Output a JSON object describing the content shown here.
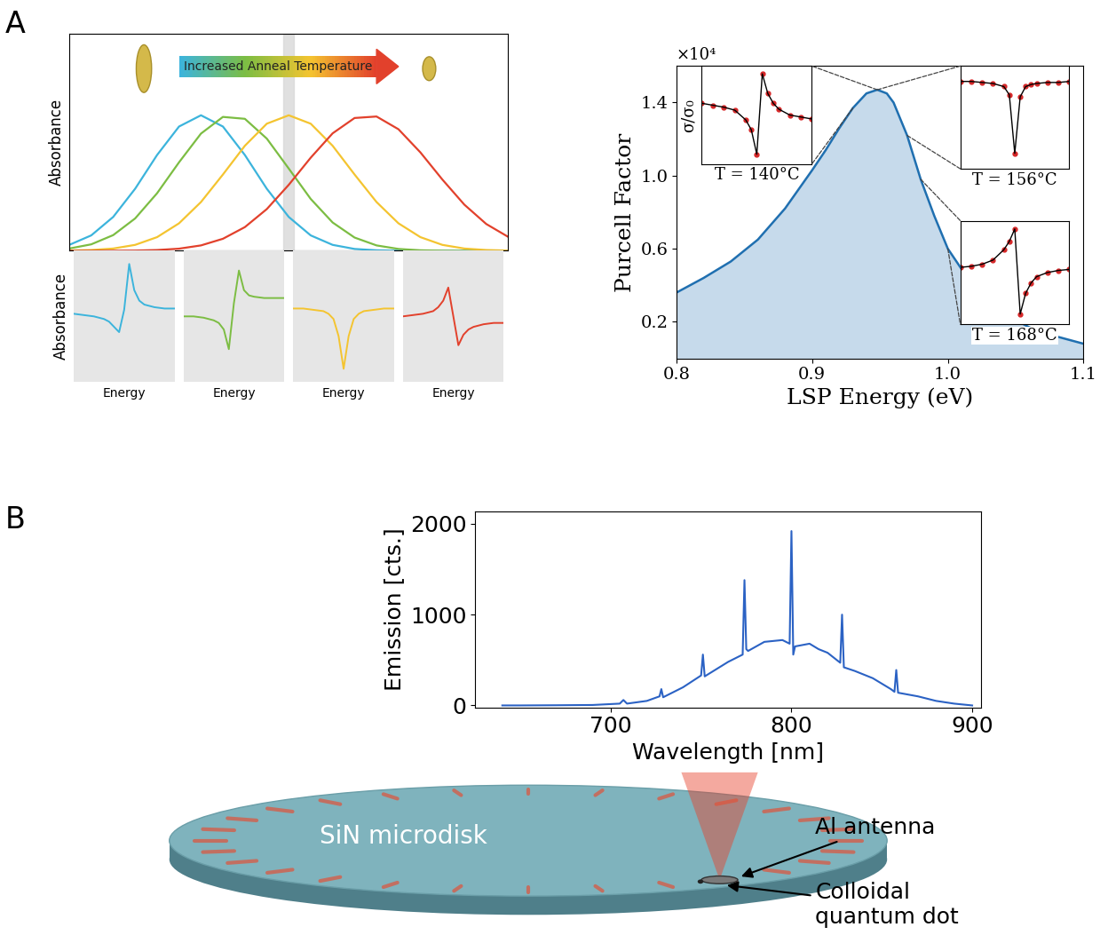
{
  "panel_labels": [
    "A",
    "B"
  ],
  "chart_data": [
    {
      "type": "line",
      "y_label": "Absorbance",
      "annotations": [
        "Increased Anneal Temperature"
      ],
      "tick_labels": false,
      "x": [
        0,
        0.05,
        0.1,
        0.15,
        0.2,
        0.25,
        0.3,
        0.35,
        0.4,
        0.45,
        0.5,
        0.55,
        0.6,
        0.65,
        0.7,
        0.75,
        0.8,
        0.85,
        0.9,
        0.95,
        1
      ],
      "xlim": [
        0,
        1
      ],
      "ylim": [
        0,
        1.6
      ],
      "series": [
        {
          "color": "#3cb4dc",
          "values": [
            0.044,
            0.114,
            0.25,
            0.458,
            0.707,
            0.917,
            1,
            0.917,
            0.707,
            0.458,
            0.25,
            0.114,
            0.044,
            0.014,
            0.004,
            0.001,
            0,
            0,
            0,
            0,
            0
          ]
        },
        {
          "color": "#7cbd43",
          "values": [
            0.017,
            0.048,
            0.116,
            0.239,
            0.425,
            0.653,
            0.865,
            0.988,
            0.974,
            0.828,
            0.607,
            0.383,
            0.209,
            0.098,
            0.04,
            0.014,
            0.004,
            0.001,
            0,
            0,
            0
          ]
        },
        {
          "color": "#f4c430",
          "values": [
            0.002,
            0.006,
            0.017,
            0.044,
            0.101,
            0.203,
            0.36,
            0.563,
            0.775,
            0.938,
            1,
            0.938,
            0.775,
            0.563,
            0.36,
            0.203,
            0.101,
            0.044,
            0.017,
            0.006,
            0.002
          ]
        },
        {
          "color": "#e2412c",
          "values": [
            0,
            0,
            0.001,
            0.002,
            0.006,
            0.016,
            0.04,
            0.089,
            0.175,
            0.308,
            0.487,
            0.687,
            0.867,
            0.98,
            0.991,
            0.897,
            0.726,
            0.526,
            0.341,
            0.198,
            0.103
          ]
        }
      ]
    },
    {
      "type": "line",
      "y_label": "Absorbance",
      "x_label": "Energy",
      "tick_labels": false,
      "x": [
        0,
        0.1,
        0.2,
        0.3,
        0.35,
        0.4,
        0.45,
        0.5,
        0.55,
        0.6,
        0.65,
        0.7,
        0.8,
        0.9,
        1
      ],
      "xlim": [
        0,
        1
      ],
      "ylim": [
        0,
        1
      ],
      "color": "#3cb4dc",
      "values": [
        0.52,
        0.51,
        0.5,
        0.48,
        0.46,
        0.42,
        0.38,
        0.55,
        0.9,
        0.7,
        0.62,
        0.59,
        0.57,
        0.56,
        0.56
      ]
    },
    {
      "type": "line",
      "x_label": "Energy",
      "tick_labels": false,
      "x": [
        0,
        0.1,
        0.2,
        0.3,
        0.35,
        0.4,
        0.45,
        0.5,
        0.55,
        0.6,
        0.65,
        0.7,
        0.8,
        0.9,
        1
      ],
      "xlim": [
        0,
        1
      ],
      "ylim": [
        0,
        1
      ],
      "color": "#7cbd43",
      "values": [
        0.5,
        0.5,
        0.49,
        0.47,
        0.45,
        0.4,
        0.25,
        0.6,
        0.85,
        0.7,
        0.66,
        0.65,
        0.64,
        0.64,
        0.64
      ]
    },
    {
      "type": "line",
      "x_label": "Energy",
      "tick_labels": false,
      "x": [
        0,
        0.1,
        0.2,
        0.3,
        0.35,
        0.4,
        0.45,
        0.5,
        0.55,
        0.6,
        0.65,
        0.7,
        0.8,
        0.9,
        1
      ],
      "xlim": [
        0,
        1
      ],
      "ylim": [
        0,
        1
      ],
      "color": "#f4c430",
      "values": [
        0.56,
        0.56,
        0.55,
        0.54,
        0.52,
        0.48,
        0.35,
        0.1,
        0.35,
        0.48,
        0.52,
        0.54,
        0.55,
        0.56,
        0.56
      ]
    },
    {
      "type": "line",
      "x_label": "Energy",
      "tick_labels": false,
      "x": [
        0,
        0.1,
        0.2,
        0.3,
        0.35,
        0.4,
        0.45,
        0.5,
        0.55,
        0.6,
        0.65,
        0.7,
        0.8,
        0.9,
        1
      ],
      "xlim": [
        0,
        1
      ],
      "ylim": [
        0,
        1
      ],
      "color": "#e2412c",
      "values": [
        0.5,
        0.51,
        0.52,
        0.54,
        0.57,
        0.62,
        0.72,
        0.5,
        0.28,
        0.36,
        0.4,
        0.42,
        0.44,
        0.45,
        0.45
      ]
    },
    {
      "type": "area",
      "x_label": "LSP Energy (eV)",
      "y_label": "Purcell Factor",
      "annotations": [
        "×10⁴"
      ],
      "x": [
        0.8,
        0.82,
        0.84,
        0.86,
        0.88,
        0.9,
        0.91,
        0.92,
        0.93,
        0.94,
        0.948,
        0.955,
        0.96,
        0.97,
        0.98,
        0.99,
        1.0,
        1.02,
        1.04,
        1.06,
        1.08,
        1.1
      ],
      "values": [
        0.36,
        0.44,
        0.53,
        0.65,
        0.82,
        1.03,
        1.14,
        1.26,
        1.37,
        1.45,
        1.47,
        1.45,
        1.4,
        1.22,
        0.98,
        0.78,
        0.6,
        0.38,
        0.25,
        0.17,
        0.12,
        0.08
      ],
      "color": "#1f6fb0",
      "xlim": [
        0.8,
        1.1
      ],
      "xticks": [
        0.8,
        0.9,
        1.0,
        1.1
      ],
      "ylim": [
        0,
        1.6
      ],
      "yticks": [
        0.2,
        0.6,
        1.0,
        1.4
      ]
    },
    {
      "type": "line",
      "y_label": "σ/σ₀",
      "annotations": [
        "T = 140°C"
      ],
      "tick_labels": false,
      "x": [
        0,
        0.1,
        0.2,
        0.3,
        0.4,
        0.45,
        0.5,
        0.55,
        0.6,
        0.65,
        0.7,
        0.8,
        0.9,
        1
      ],
      "xlim": [
        0,
        1
      ],
      "ylim": [
        0,
        1
      ],
      "series": [
        {
          "type": "scatter",
          "color": "#d62728",
          "marker": "o",
          "values": [
            0.62,
            0.6,
            0.58,
            0.55,
            0.45,
            0.35,
            0.1,
            0.92,
            0.72,
            0.62,
            0.56,
            0.5,
            0.48,
            0.46
          ]
        },
        {
          "type": "line",
          "color": "#000000",
          "values": [
            0.62,
            0.6,
            0.58,
            0.55,
            0.45,
            0.35,
            0.1,
            0.92,
            0.72,
            0.62,
            0.56,
            0.5,
            0.48,
            0.46
          ]
        }
      ]
    },
    {
      "type": "line",
      "annotations": [
        "T = 156°C"
      ],
      "tick_labels": false,
      "x": [
        0,
        0.1,
        0.2,
        0.3,
        0.4,
        0.45,
        0.5,
        0.55,
        0.6,
        0.65,
        0.7,
        0.8,
        0.9,
        1
      ],
      "xlim": [
        0,
        1
      ],
      "ylim": [
        0,
        1
      ],
      "series": [
        {
          "type": "scatter",
          "color": "#d62728",
          "marker": "o",
          "values": [
            0.85,
            0.85,
            0.84,
            0.83,
            0.8,
            0.72,
            0.15,
            0.7,
            0.8,
            0.82,
            0.83,
            0.84,
            0.84,
            0.85
          ]
        },
        {
          "type": "line",
          "color": "#000000",
          "values": [
            0.85,
            0.85,
            0.84,
            0.83,
            0.8,
            0.72,
            0.15,
            0.7,
            0.8,
            0.82,
            0.83,
            0.84,
            0.84,
            0.85
          ]
        }
      ]
    },
    {
      "type": "line",
      "annotations": [
        "T = 168°C"
      ],
      "tick_labels": false,
      "x": [
        0,
        0.1,
        0.2,
        0.3,
        0.4,
        0.45,
        0.5,
        0.55,
        0.6,
        0.65,
        0.7,
        0.8,
        0.9,
        1
      ],
      "xlim": [
        0,
        1
      ],
      "ylim": [
        0,
        1
      ],
      "series": [
        {
          "type": "scatter",
          "color": "#d62728",
          "marker": "o",
          "values": [
            0.55,
            0.56,
            0.58,
            0.62,
            0.72,
            0.8,
            0.92,
            0.1,
            0.3,
            0.4,
            0.46,
            0.5,
            0.52,
            0.53
          ]
        },
        {
          "type": "line",
          "color": "#000000",
          "values": [
            0.55,
            0.56,
            0.58,
            0.62,
            0.72,
            0.8,
            0.92,
            0.1,
            0.3,
            0.4,
            0.46,
            0.5,
            0.52,
            0.53
          ]
        }
      ]
    },
    {
      "type": "line",
      "x_label": "Wavelength [nm]",
      "y_label": "Emission [cts.]",
      "color": "#2b62c4",
      "x": [
        640,
        650,
        670,
        690,
        705,
        707,
        709,
        720,
        727,
        728,
        729,
        740,
        750,
        751,
        752,
        765,
        773,
        774,
        775,
        776,
        785,
        795,
        799,
        800,
        801,
        802,
        810,
        815,
        820,
        827,
        828,
        829,
        835,
        845,
        855,
        857,
        858,
        859,
        870,
        880,
        890,
        900
      ],
      "values": [
        0,
        0,
        2,
        5,
        20,
        60,
        20,
        50,
        100,
        180,
        90,
        200,
        330,
        560,
        320,
        480,
        560,
        1380,
        620,
        600,
        700,
        720,
        680,
        1920,
        560,
        650,
        680,
        620,
        580,
        470,
        1000,
        420,
        380,
        300,
        180,
        150,
        390,
        140,
        100,
        50,
        20,
        0
      ],
      "xlim": [
        625,
        905
      ],
      "xticks": [
        700,
        800,
        900
      ],
      "ylim": [
        -20,
        2140
      ],
      "yticks": [
        0,
        1000,
        2000
      ]
    }
  ],
  "diagram": {
    "disk_label": "SiN microdisk",
    "antenna_label": "Al antenna",
    "dot_label": "Colloidal\nquantum dot"
  }
}
